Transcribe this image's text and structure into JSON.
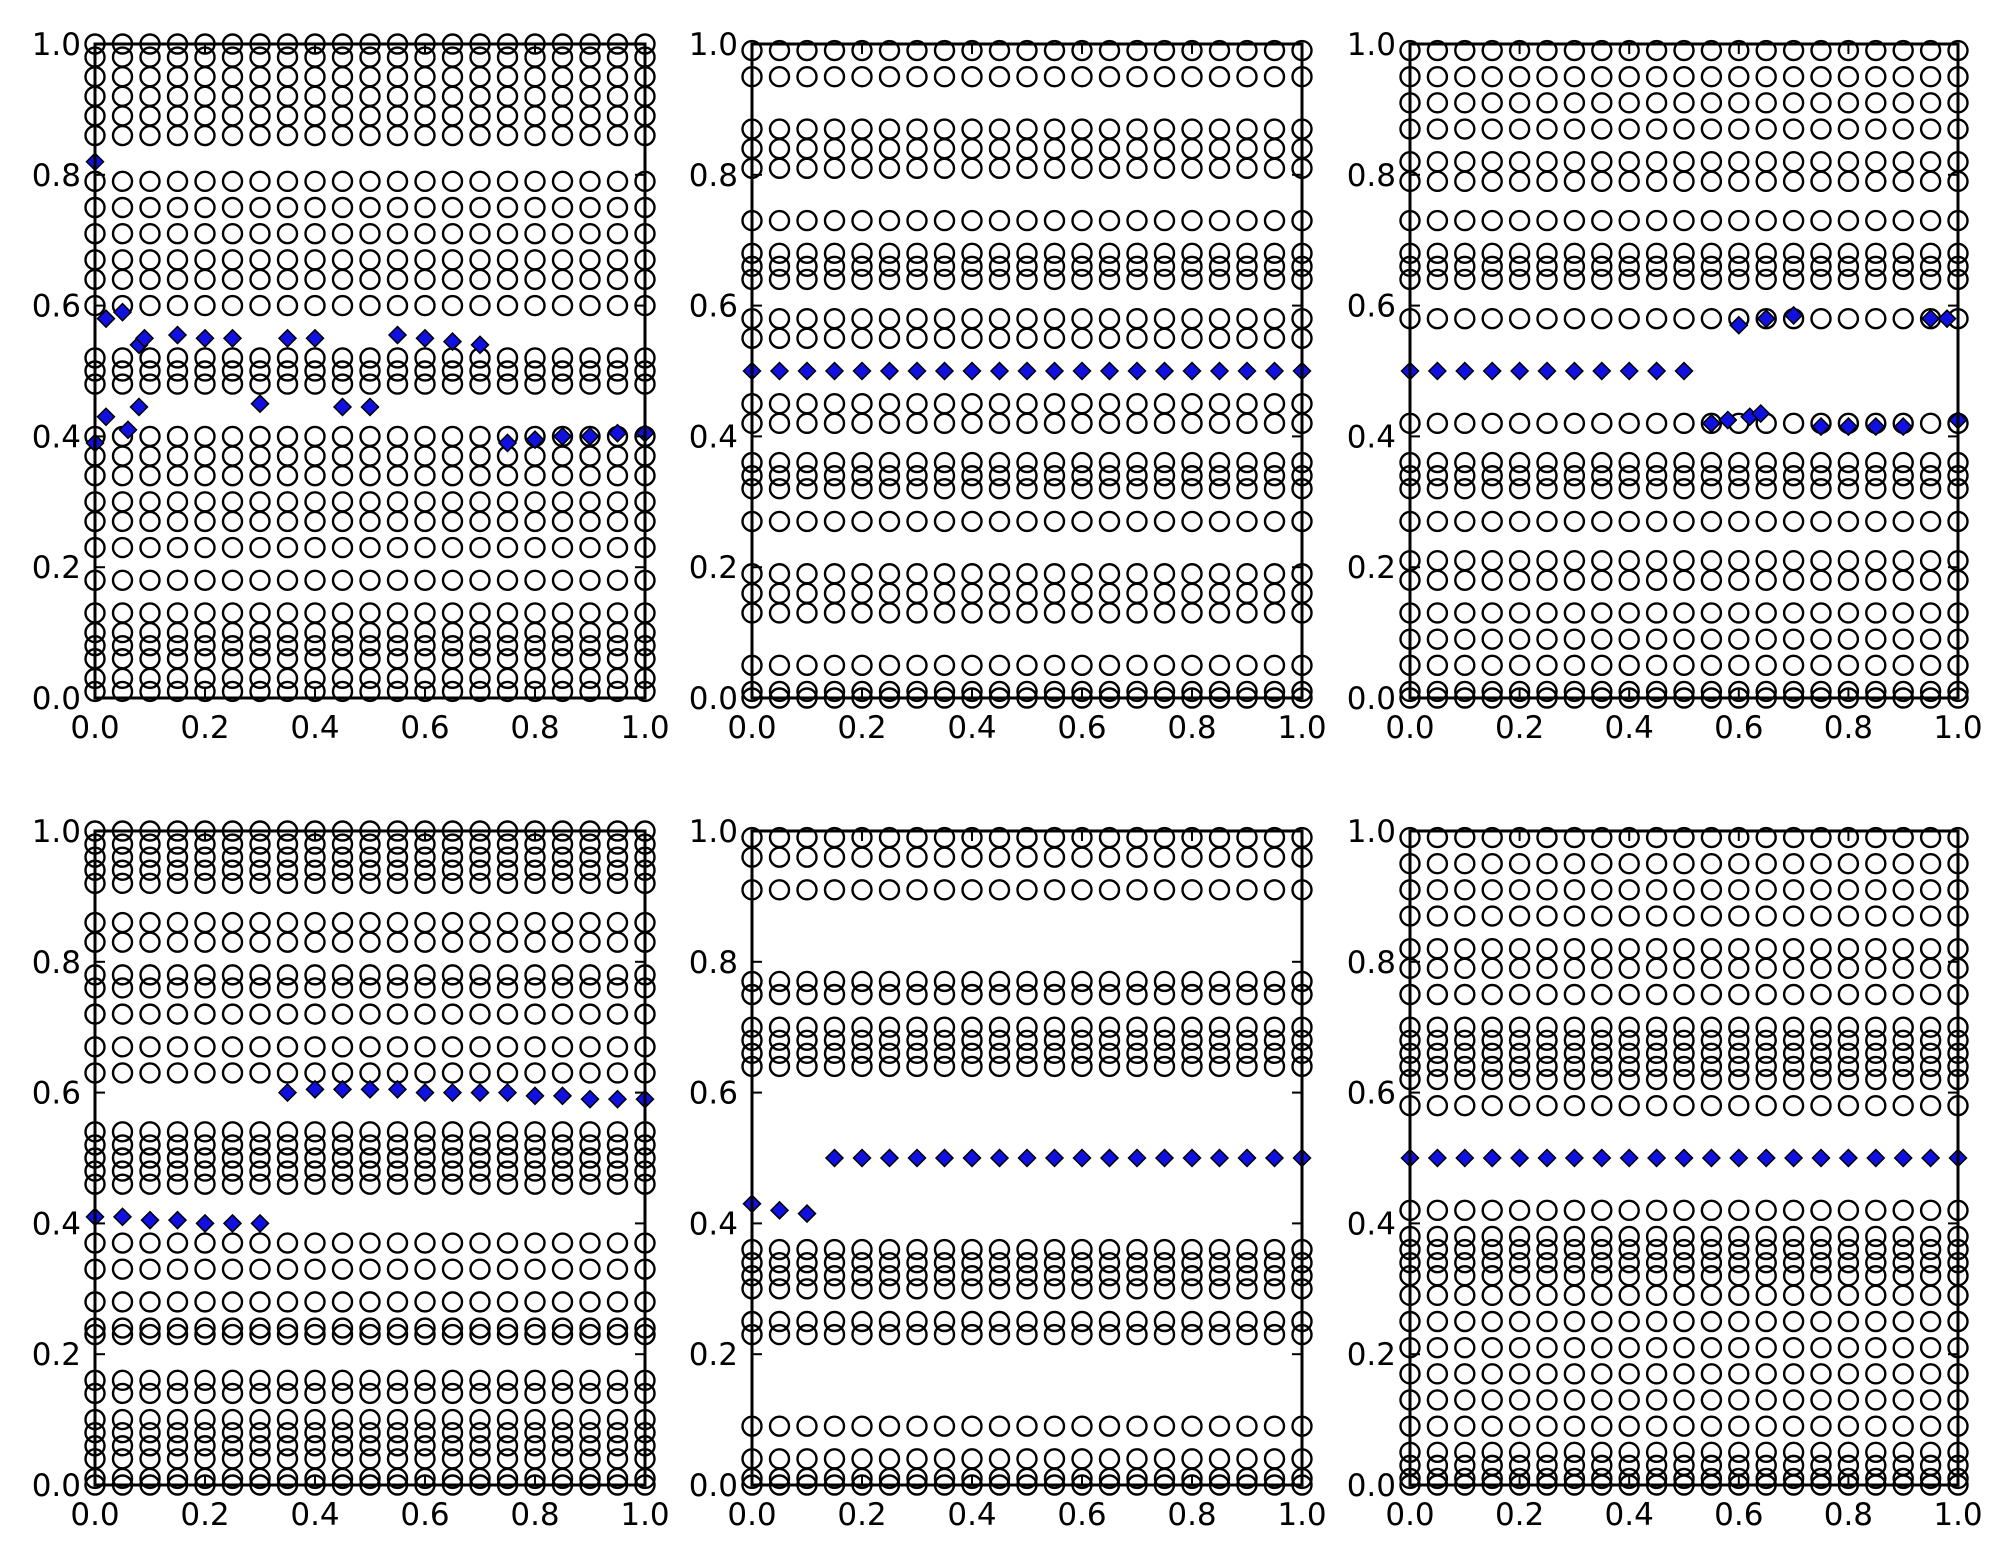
{
  "colors": {
    "marker_fill": "#ffffff",
    "marker_edge": "#000000",
    "highlight": "#1010e0"
  },
  "x_tick_labels": [
    "0.0",
    "0.2",
    "0.4",
    "0.6",
    "0.8",
    "1.0"
  ],
  "y_tick_labels": [
    "0.0",
    "0.2",
    "0.4",
    "0.6",
    "0.8",
    "1.0"
  ],
  "chart_data": [
    {
      "type": "scatter",
      "title": "",
      "xlabel": "",
      "ylabel": "",
      "xlim": [
        0,
        1
      ],
      "ylim": [
        0,
        1
      ],
      "grid": false,
      "x": [
        0,
        0.05,
        0.1,
        0.15,
        0.2,
        0.25,
        0.3,
        0.35,
        0.4,
        0.45,
        0.5,
        0.55,
        0.6,
        0.65,
        0.7,
        0.75,
        0.8,
        0.85,
        0.9,
        0.95,
        1.0
      ],
      "circle_levels": [
        0.01,
        0.03,
        0.06,
        0.08,
        0.1,
        0.13,
        0.18,
        0.23,
        0.27,
        0.3,
        0.34,
        0.37,
        0.4,
        0.48,
        0.5,
        0.52,
        0.6,
        0.64,
        0.67,
        0.71,
        0.75,
        0.79,
        0.86,
        0.89,
        0.92,
        0.95,
        0.98,
        1.0
      ],
      "highlight_points": [
        {
          "x": 0,
          "y": 0.82
        },
        {
          "x": 0.02,
          "y": 0.58
        },
        {
          "x": 0.05,
          "y": 0.59
        },
        {
          "x": 0.08,
          "y": 0.54
        },
        {
          "x": 0.09,
          "y": 0.55
        },
        {
          "x": 0.15,
          "y": 0.555
        },
        {
          "x": 0.2,
          "y": 0.55
        },
        {
          "x": 0.25,
          "y": 0.55
        },
        {
          "x": 0.35,
          "y": 0.55
        },
        {
          "x": 0.4,
          "y": 0.55
        },
        {
          "x": 0.55,
          "y": 0.555
        },
        {
          "x": 0.6,
          "y": 0.55
        },
        {
          "x": 0.65,
          "y": 0.545
        },
        {
          "x": 0.7,
          "y": 0.54
        },
        {
          "x": 0,
          "y": 0.39
        },
        {
          "x": 0.02,
          "y": 0.43
        },
        {
          "x": 0.06,
          "y": 0.41
        },
        {
          "x": 0.08,
          "y": 0.445
        },
        {
          "x": 0.3,
          "y": 0.45
        },
        {
          "x": 0.45,
          "y": 0.445
        },
        {
          "x": 0.5,
          "y": 0.445
        },
        {
          "x": 0.75,
          "y": 0.39
        },
        {
          "x": 0.8,
          "y": 0.395
        },
        {
          "x": 0.85,
          "y": 0.4
        },
        {
          "x": 0.9,
          "y": 0.4
        },
        {
          "x": 0.95,
          "y": 0.405
        },
        {
          "x": 1.0,
          "y": 0.405
        }
      ]
    },
    {
      "type": "scatter",
      "title": "",
      "xlabel": "",
      "ylabel": "",
      "xlim": [
        0,
        1
      ],
      "ylim": [
        0,
        1
      ],
      "grid": false,
      "x": [
        0,
        0.05,
        0.1,
        0.15,
        0.2,
        0.25,
        0.3,
        0.35,
        0.4,
        0.45,
        0.5,
        0.55,
        0.6,
        0.65,
        0.7,
        0.75,
        0.8,
        0.85,
        0.9,
        0.95,
        1.0
      ],
      "circle_levels": [
        0.0,
        0.01,
        0.05,
        0.13,
        0.16,
        0.19,
        0.27,
        0.32,
        0.34,
        0.36,
        0.42,
        0.45,
        0.55,
        0.58,
        0.64,
        0.66,
        0.68,
        0.73,
        0.81,
        0.84,
        0.87,
        0.95,
        0.99
      ],
      "highlight_points": [
        {
          "x": 0,
          "y": 0.5
        },
        {
          "x": 0.05,
          "y": 0.5
        },
        {
          "x": 0.1,
          "y": 0.5
        },
        {
          "x": 0.15,
          "y": 0.5
        },
        {
          "x": 0.2,
          "y": 0.5
        },
        {
          "x": 0.25,
          "y": 0.5
        },
        {
          "x": 0.3,
          "y": 0.5
        },
        {
          "x": 0.35,
          "y": 0.5
        },
        {
          "x": 0.4,
          "y": 0.5
        },
        {
          "x": 0.45,
          "y": 0.5
        },
        {
          "x": 0.5,
          "y": 0.5
        },
        {
          "x": 0.55,
          "y": 0.5
        },
        {
          "x": 0.6,
          "y": 0.5
        },
        {
          "x": 0.65,
          "y": 0.5
        },
        {
          "x": 0.7,
          "y": 0.5
        },
        {
          "x": 0.75,
          "y": 0.5
        },
        {
          "x": 0.8,
          "y": 0.5
        },
        {
          "x": 0.85,
          "y": 0.5
        },
        {
          "x": 0.9,
          "y": 0.5
        },
        {
          "x": 0.95,
          "y": 0.5
        },
        {
          "x": 1.0,
          "y": 0.5
        }
      ]
    },
    {
      "type": "scatter",
      "title": "",
      "xlabel": "",
      "ylabel": "",
      "xlim": [
        0,
        1
      ],
      "ylim": [
        0,
        1
      ],
      "grid": false,
      "x": [
        0,
        0.05,
        0.1,
        0.15,
        0.2,
        0.25,
        0.3,
        0.35,
        0.4,
        0.45,
        0.5,
        0.55,
        0.6,
        0.65,
        0.7,
        0.75,
        0.8,
        0.85,
        0.9,
        0.95,
        1.0
      ],
      "circle_levels": [
        0.0,
        0.01,
        0.05,
        0.09,
        0.13,
        0.18,
        0.21,
        0.27,
        0.32,
        0.34,
        0.36,
        0.42,
        0.58,
        0.64,
        0.66,
        0.68,
        0.73,
        0.79,
        0.82,
        0.87,
        0.91,
        0.95,
        0.99
      ],
      "highlight_points": [
        {
          "x": 0,
          "y": 0.5
        },
        {
          "x": 0.05,
          "y": 0.5
        },
        {
          "x": 0.1,
          "y": 0.5
        },
        {
          "x": 0.15,
          "y": 0.5
        },
        {
          "x": 0.2,
          "y": 0.5
        },
        {
          "x": 0.25,
          "y": 0.5
        },
        {
          "x": 0.3,
          "y": 0.5
        },
        {
          "x": 0.35,
          "y": 0.5
        },
        {
          "x": 0.4,
          "y": 0.5
        },
        {
          "x": 0.45,
          "y": 0.5
        },
        {
          "x": 0.5,
          "y": 0.5
        },
        {
          "x": 0.55,
          "y": 0.42
        },
        {
          "x": 0.58,
          "y": 0.425
        },
        {
          "x": 0.6,
          "y": 0.57
        },
        {
          "x": 0.62,
          "y": 0.43
        },
        {
          "x": 0.64,
          "y": 0.435
        },
        {
          "x": 0.65,
          "y": 0.58
        },
        {
          "x": 0.7,
          "y": 0.585
        },
        {
          "x": 0.75,
          "y": 0.415
        },
        {
          "x": 0.8,
          "y": 0.415
        },
        {
          "x": 0.85,
          "y": 0.415
        },
        {
          "x": 0.9,
          "y": 0.415
        },
        {
          "x": 0.95,
          "y": 0.58
        },
        {
          "x": 0.98,
          "y": 0.58
        },
        {
          "x": 1.0,
          "y": 0.425
        }
      ]
    },
    {
      "type": "scatter",
      "title": "",
      "xlabel": "",
      "ylabel": "",
      "xlim": [
        0,
        1
      ],
      "ylim": [
        0,
        1
      ],
      "grid": false,
      "x": [
        0,
        0.05,
        0.1,
        0.15,
        0.2,
        0.25,
        0.3,
        0.35,
        0.4,
        0.45,
        0.5,
        0.55,
        0.6,
        0.65,
        0.7,
        0.75,
        0.8,
        0.85,
        0.9,
        0.95,
        1.0
      ],
      "circle_levels": [
        0.0,
        0.01,
        0.04,
        0.06,
        0.08,
        0.1,
        0.14,
        0.16,
        0.23,
        0.24,
        0.28,
        0.33,
        0.37,
        0.46,
        0.48,
        0.5,
        0.52,
        0.54,
        0.63,
        0.67,
        0.72,
        0.76,
        0.78,
        0.83,
        0.86,
        0.92,
        0.94,
        0.96,
        0.98,
        1.0
      ],
      "highlight_points": [
        {
          "x": 0,
          "y": 0.41
        },
        {
          "x": 0.05,
          "y": 0.41
        },
        {
          "x": 0.1,
          "y": 0.405
        },
        {
          "x": 0.15,
          "y": 0.405
        },
        {
          "x": 0.2,
          "y": 0.4
        },
        {
          "x": 0.25,
          "y": 0.4
        },
        {
          "x": 0.3,
          "y": 0.4
        },
        {
          "x": 0.35,
          "y": 0.6
        },
        {
          "x": 0.4,
          "y": 0.605
        },
        {
          "x": 0.45,
          "y": 0.605
        },
        {
          "x": 0.5,
          "y": 0.605
        },
        {
          "x": 0.55,
          "y": 0.605
        },
        {
          "x": 0.6,
          "y": 0.6
        },
        {
          "x": 0.65,
          "y": 0.6
        },
        {
          "x": 0.7,
          "y": 0.6
        },
        {
          "x": 0.75,
          "y": 0.6
        },
        {
          "x": 0.8,
          "y": 0.595
        },
        {
          "x": 0.85,
          "y": 0.595
        },
        {
          "x": 0.9,
          "y": 0.59
        },
        {
          "x": 0.95,
          "y": 0.59
        },
        {
          "x": 1.0,
          "y": 0.59
        }
      ]
    },
    {
      "type": "scatter",
      "title": "",
      "xlabel": "",
      "ylabel": "",
      "xlim": [
        0,
        1
      ],
      "ylim": [
        0,
        1
      ],
      "grid": false,
      "x": [
        0,
        0.05,
        0.1,
        0.15,
        0.2,
        0.25,
        0.3,
        0.35,
        0.4,
        0.45,
        0.5,
        0.55,
        0.6,
        0.65,
        0.7,
        0.75,
        0.8,
        0.85,
        0.9,
        0.95,
        1.0
      ],
      "circle_levels": [
        0.0,
        0.01,
        0.04,
        0.09,
        0.23,
        0.25,
        0.3,
        0.32,
        0.34,
        0.36,
        0.64,
        0.66,
        0.68,
        0.7,
        0.75,
        0.77,
        0.91,
        0.96,
        0.99
      ],
      "highlight_points": [
        {
          "x": 0,
          "y": 0.43
        },
        {
          "x": 0.05,
          "y": 0.42
        },
        {
          "x": 0.1,
          "y": 0.415
        },
        {
          "x": 0.15,
          "y": 0.5
        },
        {
          "x": 0.2,
          "y": 0.5
        },
        {
          "x": 0.25,
          "y": 0.5
        },
        {
          "x": 0.3,
          "y": 0.5
        },
        {
          "x": 0.35,
          "y": 0.5
        },
        {
          "x": 0.4,
          "y": 0.5
        },
        {
          "x": 0.45,
          "y": 0.5
        },
        {
          "x": 0.5,
          "y": 0.5
        },
        {
          "x": 0.55,
          "y": 0.5
        },
        {
          "x": 0.6,
          "y": 0.5
        },
        {
          "x": 0.65,
          "y": 0.5
        },
        {
          "x": 0.7,
          "y": 0.5
        },
        {
          "x": 0.75,
          "y": 0.5
        },
        {
          "x": 0.8,
          "y": 0.5
        },
        {
          "x": 0.85,
          "y": 0.5
        },
        {
          "x": 0.9,
          "y": 0.5
        },
        {
          "x": 0.95,
          "y": 0.5
        },
        {
          "x": 1.0,
          "y": 0.5
        }
      ]
    },
    {
      "type": "scatter",
      "title": "",
      "xlabel": "",
      "ylabel": "",
      "xlim": [
        0,
        1
      ],
      "ylim": [
        0,
        1
      ],
      "grid": false,
      "x": [
        0,
        0.05,
        0.1,
        0.15,
        0.2,
        0.25,
        0.3,
        0.35,
        0.4,
        0.45,
        0.5,
        0.55,
        0.6,
        0.65,
        0.7,
        0.75,
        0.8,
        0.85,
        0.9,
        0.95,
        1.0
      ],
      "circle_levels": [
        0.0,
        0.01,
        0.03,
        0.05,
        0.09,
        0.13,
        0.17,
        0.21,
        0.25,
        0.29,
        0.32,
        0.34,
        0.36,
        0.38,
        0.42,
        0.58,
        0.62,
        0.64,
        0.66,
        0.68,
        0.7,
        0.75,
        0.79,
        0.82,
        0.87,
        0.91,
        0.95,
        0.99
      ],
      "highlight_points": [
        {
          "x": 0,
          "y": 0.5
        },
        {
          "x": 0.05,
          "y": 0.5
        },
        {
          "x": 0.1,
          "y": 0.5
        },
        {
          "x": 0.15,
          "y": 0.5
        },
        {
          "x": 0.2,
          "y": 0.5
        },
        {
          "x": 0.25,
          "y": 0.5
        },
        {
          "x": 0.3,
          "y": 0.5
        },
        {
          "x": 0.35,
          "y": 0.5
        },
        {
          "x": 0.4,
          "y": 0.5
        },
        {
          "x": 0.45,
          "y": 0.5
        },
        {
          "x": 0.5,
          "y": 0.5
        },
        {
          "x": 0.55,
          "y": 0.5
        },
        {
          "x": 0.6,
          "y": 0.5
        },
        {
          "x": 0.65,
          "y": 0.5
        },
        {
          "x": 0.7,
          "y": 0.5
        },
        {
          "x": 0.75,
          "y": 0.5
        },
        {
          "x": 0.8,
          "y": 0.5
        },
        {
          "x": 0.85,
          "y": 0.5
        },
        {
          "x": 0.9,
          "y": 0.5
        },
        {
          "x": 0.95,
          "y": 0.5
        },
        {
          "x": 1.0,
          "y": 0.5
        }
      ]
    }
  ]
}
